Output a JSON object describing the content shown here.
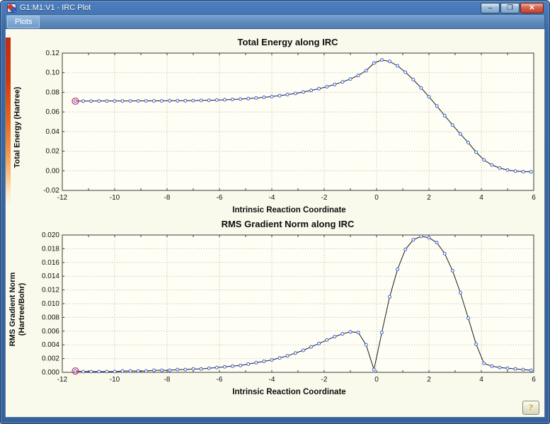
{
  "titlebar": {
    "title": "G1:M1:V1 - IRC Plot",
    "minimize_label": "–",
    "maximize_label": "❐",
    "close_label": "✕"
  },
  "menu": {
    "items": [
      {
        "label": "Plots"
      }
    ]
  },
  "help": {
    "label": "?"
  },
  "colors": {
    "plot_bg": "#fefef4",
    "grid": "#b3b3a6",
    "frame": "#3a3a3a",
    "line": "#1a1a1a",
    "marker_stroke": "#3f5fd0",
    "marker_fill": "#ffffff",
    "first_point_ring": "#d6336c",
    "accent_blue": "#3a68a6"
  },
  "chart_data": [
    {
      "type": "line",
      "title": "Total Energy along IRC",
      "xlabel": "Intrinsic Reaction Coordinate",
      "ylabel": "Total Energy (Hartree)",
      "xlim": [
        -12,
        6
      ],
      "ylim": [
        -0.02,
        0.12
      ],
      "xticks": [
        -12,
        -10,
        -8,
        -6,
        -4,
        -2,
        0,
        2,
        4,
        6
      ],
      "yticks": [
        -0.02,
        0.0,
        0.02,
        0.04,
        0.06,
        0.08,
        0.1,
        0.12
      ],
      "ytick_decimals": 2,
      "grid": true,
      "legend": "none",
      "first_point_highlight": "red-circle",
      "x": [
        -11.5,
        -11.2,
        -10.9,
        -10.6,
        -10.3,
        -10.0,
        -9.7,
        -9.4,
        -9.1,
        -8.8,
        -8.5,
        -8.2,
        -7.9,
        -7.6,
        -7.3,
        -7.0,
        -6.7,
        -6.4,
        -6.1,
        -5.8,
        -5.5,
        -5.2,
        -4.9,
        -4.6,
        -4.3,
        -4.0,
        -3.7,
        -3.4,
        -3.1,
        -2.8,
        -2.5,
        -2.2,
        -1.9,
        -1.6,
        -1.3,
        -1.0,
        -0.7,
        -0.4,
        -0.1,
        0.2,
        0.5,
        0.8,
        1.1,
        1.4,
        1.7,
        2.0,
        2.3,
        2.6,
        2.9,
        3.2,
        3.5,
        3.8,
        4.1,
        4.4,
        4.7,
        5.0,
        5.3,
        5.6,
        5.9
      ],
      "y": [
        0.071,
        0.0711,
        0.0711,
        0.0712,
        0.0712,
        0.0712,
        0.0712,
        0.0712,
        0.0713,
        0.0713,
        0.0713,
        0.0713,
        0.0714,
        0.0714,
        0.0715,
        0.0716,
        0.0717,
        0.0719,
        0.0721,
        0.0724,
        0.0727,
        0.0731,
        0.0736,
        0.0742,
        0.0749,
        0.0757,
        0.0766,
        0.0777,
        0.0789,
        0.0803,
        0.0819,
        0.0837,
        0.0857,
        0.088,
        0.0906,
        0.0936,
        0.0972,
        0.102,
        0.1098,
        0.113,
        0.1115,
        0.107,
        0.1005,
        0.093,
        0.0845,
        0.0755,
        0.066,
        0.0563,
        0.0467,
        0.0375,
        0.0288,
        0.019,
        0.011,
        0.006,
        0.0028,
        0.0008,
        -0.0003,
        -0.0009,
        -0.0011
      ]
    },
    {
      "type": "line",
      "title": "RMS Gradient Norm along IRC",
      "xlabel": "Intrinsic Reaction Coordinate",
      "ylabel": "RMS Gradient Norm\n(Hartree/Bohr)",
      "xlim": [
        -12,
        6
      ],
      "ylim": [
        0.0,
        0.02
      ],
      "xticks": [
        -12,
        -10,
        -8,
        -6,
        -4,
        -2,
        0,
        2,
        4,
        6
      ],
      "yticks": [
        0.0,
        0.002,
        0.004,
        0.006,
        0.008,
        0.01,
        0.012,
        0.014,
        0.016,
        0.018,
        0.02
      ],
      "ytick_decimals": 3,
      "grid": true,
      "legend": "none",
      "first_point_highlight": "red-circle",
      "x": [
        -11.5,
        -11.2,
        -10.9,
        -10.6,
        -10.3,
        -10.0,
        -9.7,
        -9.4,
        -9.1,
        -8.8,
        -8.5,
        -8.2,
        -7.9,
        -7.6,
        -7.3,
        -7.0,
        -6.7,
        -6.4,
        -6.1,
        -5.8,
        -5.5,
        -5.2,
        -4.9,
        -4.6,
        -4.3,
        -4.0,
        -3.7,
        -3.4,
        -3.1,
        -2.8,
        -2.5,
        -2.2,
        -1.9,
        -1.6,
        -1.3,
        -1.0,
        -0.7,
        -0.4,
        -0.1,
        0.2,
        0.5,
        0.8,
        1.1,
        1.4,
        1.7,
        2.0,
        2.3,
        2.6,
        2.9,
        3.2,
        3.5,
        3.8,
        4.1,
        4.4,
        4.7,
        5.0,
        5.3,
        5.6,
        5.9
      ],
      "y": [
        0.0002,
        0.0001,
        0.0001,
        0.0001,
        0.0001,
        0.0001,
        0.0002,
        0.0002,
        0.0002,
        0.0002,
        0.0003,
        0.0003,
        0.0003,
        0.0004,
        0.0004,
        0.0005,
        0.0005,
        0.0006,
        0.0007,
        0.0008,
        0.0009,
        0.001,
        0.0012,
        0.0014,
        0.0016,
        0.0018,
        0.0021,
        0.0024,
        0.0028,
        0.0032,
        0.0037,
        0.0042,
        0.0047,
        0.0052,
        0.0056,
        0.0059,
        0.0058,
        0.004,
        0.0004,
        0.0058,
        0.011,
        0.015,
        0.0179,
        0.0193,
        0.0198,
        0.0196,
        0.0189,
        0.0173,
        0.0148,
        0.0116,
        0.0079,
        0.0041,
        0.0013,
        0.0009,
        0.0007,
        0.0006,
        0.0005,
        0.0004,
        0.0003
      ]
    }
  ]
}
